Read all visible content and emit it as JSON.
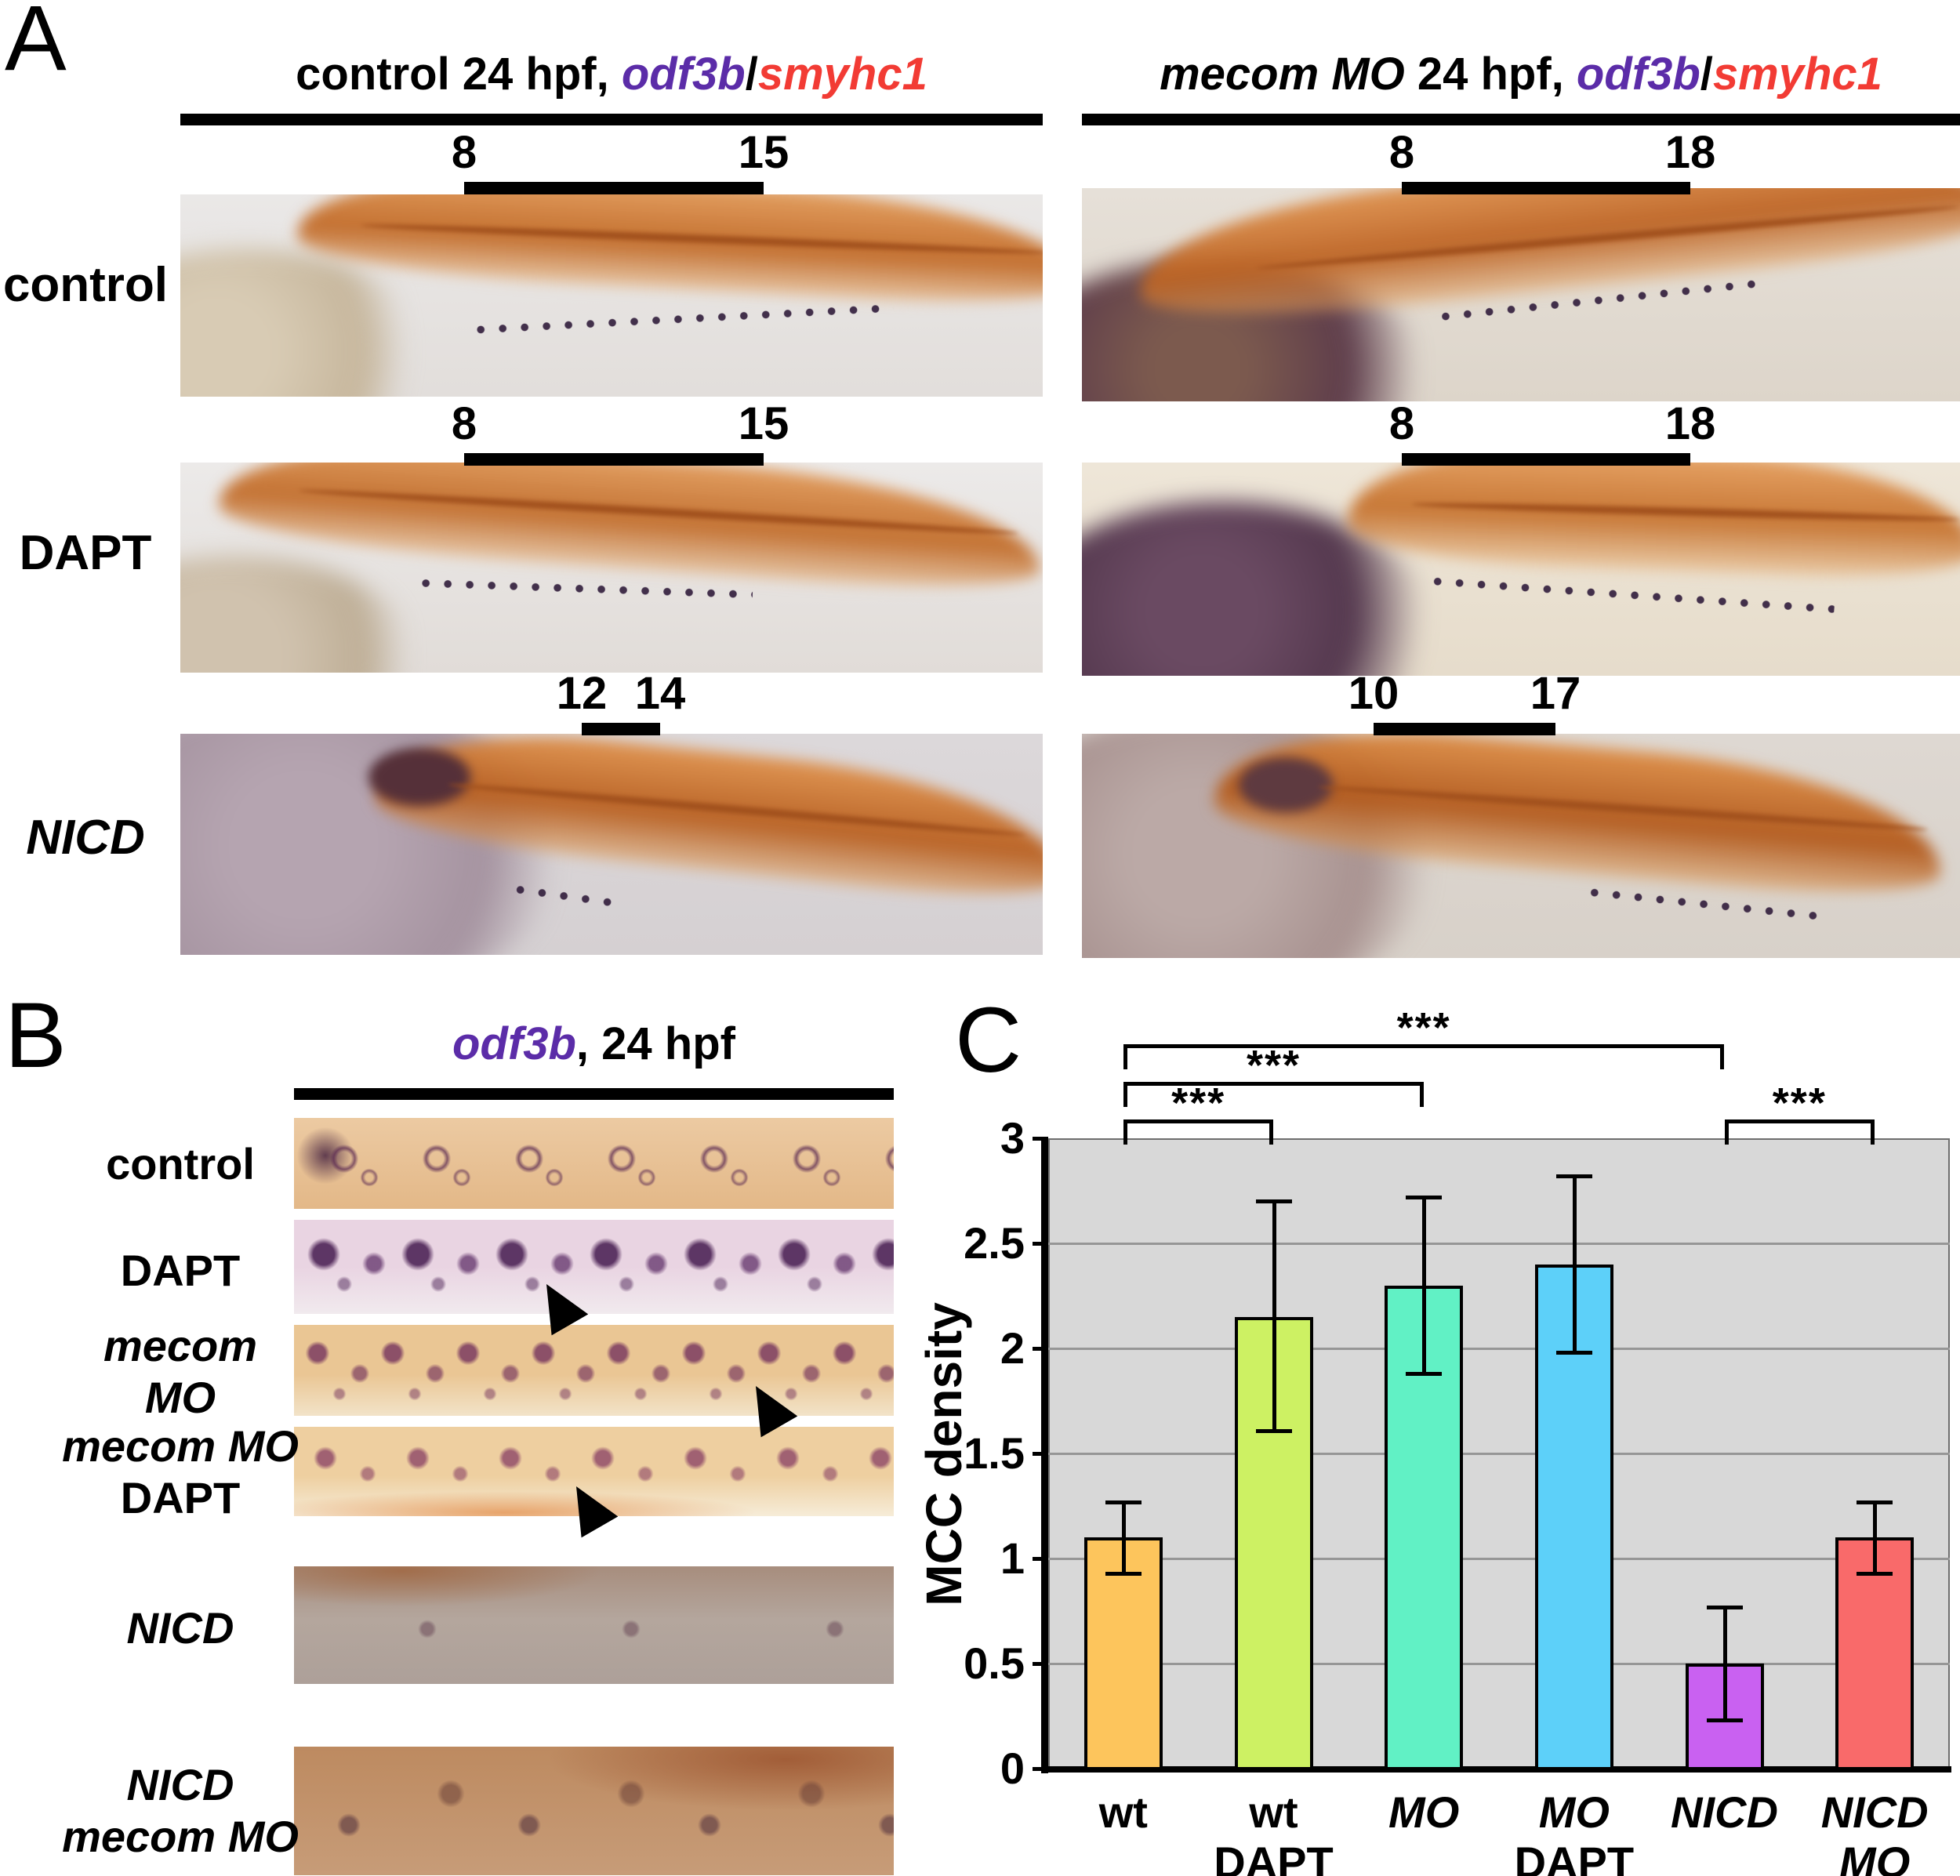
{
  "figure": {
    "background": "#ffffff",
    "gene_colors": {
      "odf3b": "#5b2ca8",
      "smyhc1": "#f23b34"
    },
    "panel_a": {
      "label": "A",
      "columns": [
        {
          "header": [
            {
              "t": "control 24 hpf, ",
              "i": false,
              "c": "#000000"
            },
            {
              "t": "odf3b",
              "i": true,
              "c": "#5b2ca8"
            },
            {
              "t": "/",
              "i": false,
              "c": "#000000"
            },
            {
              "t": "smyhc1",
              "i": true,
              "c": "#f23b34"
            }
          ]
        },
        {
          "header": [
            {
              "t": "mecom MO",
              "i": true,
              "c": "#000000"
            },
            {
              "t": " 24 hpf, ",
              "i": false,
              "c": "#000000"
            },
            {
              "t": "odf3b",
              "i": true,
              "c": "#5b2ca8"
            },
            {
              "t": "/",
              "i": false,
              "c": "#000000"
            },
            {
              "t": "smyhc1",
              "i": true,
              "c": "#f23b34"
            }
          ]
        }
      ],
      "row_labels": [
        [
          {
            "t": "control",
            "i": false
          }
        ],
        [
          {
            "t": "DAPT",
            "i": false
          }
        ],
        [
          {
            "t": "NICD",
            "i": true
          }
        ]
      ],
      "somite_markers": [
        {
          "start": "8",
          "end": "15"
        },
        {
          "start": "8",
          "end": "18"
        },
        {
          "start": "8",
          "end": "15"
        },
        {
          "start": "8",
          "end": "18"
        },
        {
          "start": "12",
          "end": "14"
        },
        {
          "start": "10",
          "end": "17"
        }
      ]
    },
    "panel_b": {
      "label": "B",
      "header": [
        {
          "t": "odf3b",
          "i": true,
          "c": "#5b2ca8"
        },
        {
          "t": ", 24 hpf",
          "i": false,
          "c": "#000000"
        }
      ],
      "strips": [
        {
          "label": [
            [
              {
                "t": "control",
                "i": false
              }
            ]
          ],
          "arrow": false
        },
        {
          "label": [
            [
              {
                "t": "DAPT",
                "i": false
              }
            ]
          ],
          "arrow": true
        },
        {
          "label": [
            [
              {
                "t": "mecom",
                "i": true
              }
            ],
            [
              {
                "t": "MO",
                "i": true
              }
            ]
          ],
          "arrow": true
        },
        {
          "label": [
            [
              {
                "t": "mecom MO",
                "i": true
              }
            ],
            [
              {
                "t": "DAPT",
                "i": false
              }
            ]
          ],
          "arrow": true
        },
        {
          "label": [
            [
              {
                "t": "NICD",
                "i": true
              }
            ]
          ],
          "arrow": false
        },
        {
          "label": [
            [
              {
                "t": "NICD",
                "i": true
              }
            ],
            [
              {
                "t": "mecom MO",
                "i": true
              }
            ]
          ],
          "arrow": false
        }
      ]
    },
    "panel_c": {
      "label": "C",
      "chart_data": {
        "type": "bar",
        "title": "",
        "xlabel": "",
        "ylabel": "MCC density",
        "ylim": [
          0,
          3
        ],
        "yticks": [
          0,
          0.5,
          1,
          1.5,
          2,
          2.5,
          3
        ],
        "grid": true,
        "plot_bg": "#d8d8d8",
        "legend": "none",
        "categories": [
          [
            [
              {
                "t": "wt",
                "i": false
              }
            ]
          ],
          [
            [
              {
                "t": "wt",
                "i": false
              }
            ],
            [
              {
                "t": "DAPT",
                "i": false
              }
            ]
          ],
          [
            [
              {
                "t": "MO",
                "i": true
              }
            ]
          ],
          [
            [
              {
                "t": "MO",
                "i": true
              }
            ],
            [
              {
                "t": "DAPT",
                "i": false
              }
            ]
          ],
          [
            [
              {
                "t": "NICD",
                "i": true
              }
            ]
          ],
          [
            [
              {
                "t": "NICD",
                "i": true
              }
            ],
            [
              {
                "t": "MO",
                "i": true
              }
            ]
          ]
        ],
        "values": [
          1.1,
          2.15,
          2.3,
          2.4,
          0.5,
          1.1
        ],
        "errors_minus": [
          0.17,
          0.54,
          0.42,
          0.42,
          0.27,
          0.17
        ],
        "errors_plus": [
          0.17,
          0.55,
          0.42,
          0.42,
          0.27,
          0.17
        ],
        "bar_colors": [
          "#fdc55c",
          "#cdf163",
          "#61f1c5",
          "#5dd0f9",
          "#c961f1",
          "#f96a6a"
        ],
        "significance": [
          {
            "from": 0,
            "to": 1,
            "label": "***",
            "row": 0
          },
          {
            "from": 0,
            "to": 2,
            "label": "***",
            "row": 1
          },
          {
            "from": 0,
            "to": 4,
            "label": "***",
            "row": 2
          },
          {
            "from": 4,
            "to": 5,
            "label": "***",
            "row": 0
          }
        ]
      }
    }
  }
}
